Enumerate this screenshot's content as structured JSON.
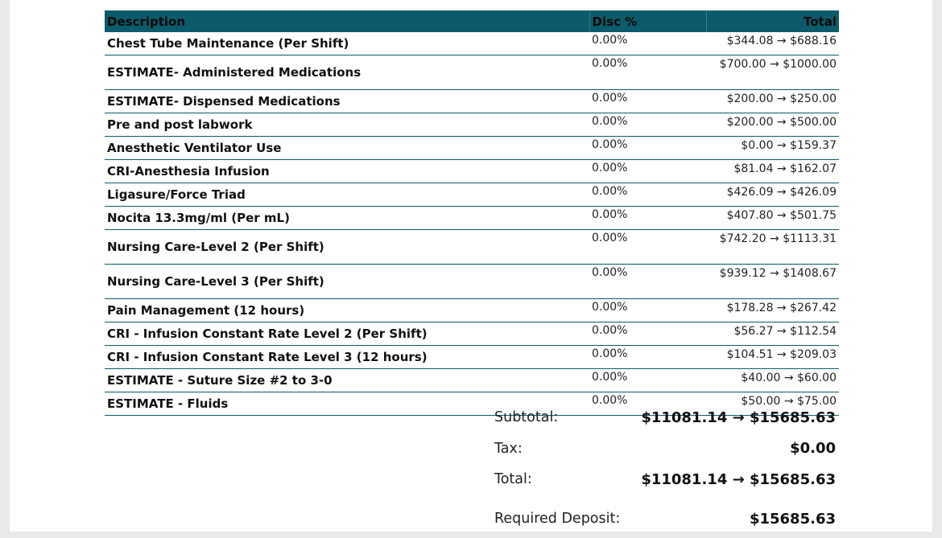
{
  "table": {
    "headers": {
      "description": "Description",
      "disc": "Disc %",
      "total": "Total"
    },
    "rows": [
      {
        "description": "Chest Tube Maintenance (Per Shift)",
        "disc": "0.00%",
        "total": "$344.08 → $688.16"
      },
      {
        "description": "ESTIMATE- Administered Medications",
        "disc": "0.00%",
        "total": "$700.00 → $1000.00"
      },
      {
        "description": "ESTIMATE- Dispensed Medications",
        "disc": "0.00%",
        "total": "$200.00 → $250.00"
      },
      {
        "description": "Pre and post labwork",
        "disc": "0.00%",
        "total": "$200.00 → $500.00"
      },
      {
        "description": "Anesthetic Ventilator Use",
        "disc": "0.00%",
        "total": "$0.00 → $159.37"
      },
      {
        "description": "CRI-Anesthesia Infusion",
        "disc": "0.00%",
        "total": "$81.04 → $162.07"
      },
      {
        "description": "Ligasure/Force Triad",
        "disc": "0.00%",
        "total": "$426.09 → $426.09"
      },
      {
        "description": "Nocita 13.3mg/ml (Per mL)",
        "disc": "0.00%",
        "total": "$407.80 → $501.75"
      },
      {
        "description": "Nursing Care-Level 2 (Per Shift)",
        "disc": "0.00%",
        "total": "$742.20 → $1113.31"
      },
      {
        "description": "Nursing Care-Level 3 (Per Shift)",
        "disc": "0.00%",
        "total": "$939.12 → $1408.67"
      },
      {
        "description": "Pain Management (12 hours)",
        "disc": "0.00%",
        "total": "$178.28 → $267.42"
      },
      {
        "description": "CRI - Infusion Constant Rate Level 2 (Per Shift)",
        "disc": "0.00%",
        "total": "$56.27 → $112.54"
      },
      {
        "description": "CRI - Infusion Constant Rate Level 3 (12 hours)",
        "disc": "0.00%",
        "total": "$104.51 → $209.03"
      },
      {
        "description": "ESTIMATE - Suture Size #2 to 3-0",
        "disc": "0.00%",
        "total": "$40.00 → $60.00"
      },
      {
        "description": "ESTIMATE - Fluids",
        "disc": "0.00%",
        "total": "$50.00 → $75.00"
      }
    ]
  },
  "summary": {
    "subtotal_label": "Subtotal:",
    "subtotal_value": "$11081.14 → $15685.63",
    "tax_label": "Tax:",
    "tax_value": "$0.00",
    "total_label": "Total:",
    "total_value": "$11081.14 → $15685.63",
    "deposit_label": "Required Deposit:",
    "deposit_value": "$15685.63"
  },
  "colors": {
    "header_bg": "#0c5b6b",
    "row_border": "#0c5b6b"
  }
}
